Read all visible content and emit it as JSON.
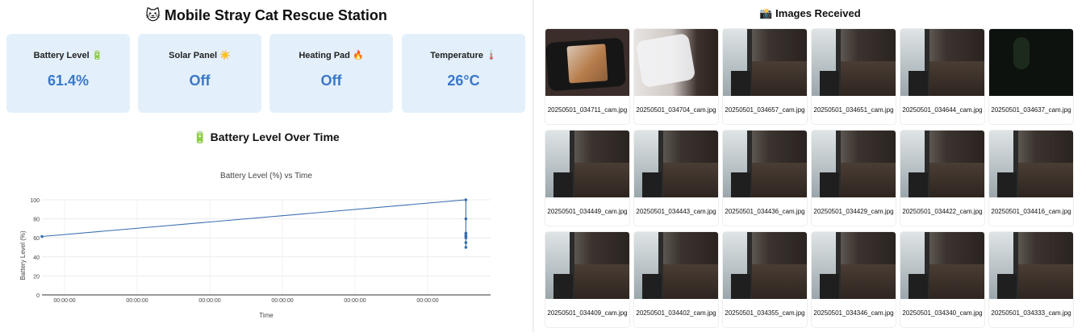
{
  "dashboard": {
    "title": "🐱 Mobile Stray Cat Rescue Station",
    "cards": [
      {
        "label": "Battery Level 🔋",
        "value": "61.4%"
      },
      {
        "label": "Solar Panel ☀️",
        "value": "Off"
      },
      {
        "label": "Heating Pad 🔥",
        "value": "Off"
      },
      {
        "label": "Temperature 🌡️",
        "value": "26°C"
      }
    ],
    "chart_section_title": "🔋 Battery Level Over Time"
  },
  "chart_data": {
    "type": "line",
    "title": "Battery Level (%) vs Time",
    "xlabel": "Time",
    "ylabel": "Battery Level (%)",
    "ylim": [
      0,
      100
    ],
    "yticks": [
      0,
      20,
      40,
      60,
      80,
      100
    ],
    "xtick_labels": [
      "00:00:00",
      "00:00:00",
      "00:00:00",
      "00:00:00",
      "00:00:00",
      "00:00:00"
    ],
    "grid": true,
    "color": "#3a6fb0",
    "series": [
      {
        "x": [
          0,
          0.945,
          0.945,
          0.945,
          0.945,
          0.945,
          0.945,
          0.945,
          0.945,
          0.945
        ],
        "values": [
          61.4,
          100,
          80,
          65,
          60,
          55,
          50,
          62,
          64,
          61.4
        ]
      }
    ]
  },
  "gallery": {
    "title": "📸 Images Received",
    "images": [
      {
        "caption": "20250501_034711_cam.jpg",
        "scene": "phone"
      },
      {
        "caption": "20250501_034704_cam.jpg",
        "scene": "blur"
      },
      {
        "caption": "20250501_034657_cam.jpg",
        "scene": "room"
      },
      {
        "caption": "20250501_034651_cam.jpg",
        "scene": "room"
      },
      {
        "caption": "20250501_034644_cam.jpg",
        "scene": "room"
      },
      {
        "caption": "20250501_034637_cam.jpg",
        "scene": "dark"
      },
      {
        "caption": "20250501_034449_cam.jpg",
        "scene": "room"
      },
      {
        "caption": "20250501_034443_cam.jpg",
        "scene": "room"
      },
      {
        "caption": "20250501_034436_cam.jpg",
        "scene": "room"
      },
      {
        "caption": "20250501_034429_cam.jpg",
        "scene": "room"
      },
      {
        "caption": "20250501_034422_cam.jpg",
        "scene": "room"
      },
      {
        "caption": "20250501_034416_cam.jpg",
        "scene": "room"
      },
      {
        "caption": "20250501_034409_cam.jpg",
        "scene": "room"
      },
      {
        "caption": "20250501_034402_cam.jpg",
        "scene": "room"
      },
      {
        "caption": "20250501_034355_cam.jpg",
        "scene": "room"
      },
      {
        "caption": "20250501_034346_cam.jpg",
        "scene": "room"
      },
      {
        "caption": "20250501_034340_cam.jpg",
        "scene": "room"
      },
      {
        "caption": "20250501_034333_cam.jpg",
        "scene": "room"
      }
    ]
  }
}
